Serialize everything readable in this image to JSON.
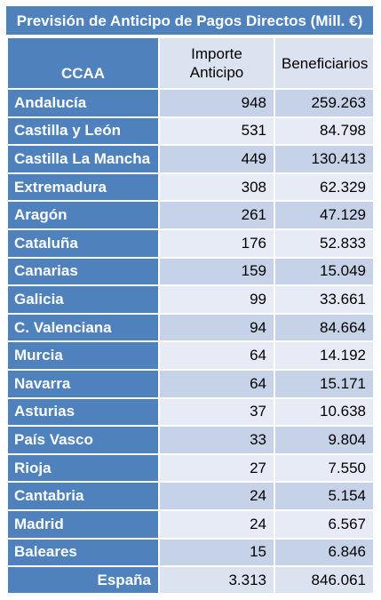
{
  "title": "Previsión de Anticipo de Pagos Directos (Mill. €)",
  "columns": {
    "ccaa": "CCAA",
    "importe": "Importe Anticipo",
    "beneficiarios": "Beneficiarios"
  },
  "total": {
    "label": "España",
    "importe": "3.313",
    "beneficiarios": "846.061"
  },
  "colors": {
    "header_blue": "#4f81bd",
    "band_dark": "#c5d2e7",
    "band_light": "#e6ebf5"
  },
  "chart_data": {
    "type": "table",
    "title": "Previsión de Anticipo de Pagos Directos (Mill. €)",
    "columns": [
      "CCAA",
      "Importe Anticipo",
      "Beneficiarios"
    ],
    "rows": [
      {
        "ccaa": "Andalucía",
        "importe": "948",
        "beneficiarios": "259.263"
      },
      {
        "ccaa": "Castilla y León",
        "importe": "531",
        "beneficiarios": "84.798"
      },
      {
        "ccaa": "Castilla La Mancha",
        "importe": "449",
        "beneficiarios": "130.413"
      },
      {
        "ccaa": "Extremadura",
        "importe": "308",
        "beneficiarios": "62.329"
      },
      {
        "ccaa": "Aragón",
        "importe": "261",
        "beneficiarios": "47.129"
      },
      {
        "ccaa": "Cataluña",
        "importe": "176",
        "beneficiarios": "52.833"
      },
      {
        "ccaa": "Canarias",
        "importe": "159",
        "beneficiarios": "15.049"
      },
      {
        "ccaa": "Galicia",
        "importe": "99",
        "beneficiarios": "33.661"
      },
      {
        "ccaa": "C. Valenciana",
        "importe": "94",
        "beneficiarios": "84.664"
      },
      {
        "ccaa": "Murcia",
        "importe": "64",
        "beneficiarios": "14.192"
      },
      {
        "ccaa": "Navarra",
        "importe": "64",
        "beneficiarios": "15.171"
      },
      {
        "ccaa": "Asturias",
        "importe": "37",
        "beneficiarios": "10.638"
      },
      {
        "ccaa": "País Vasco",
        "importe": "33",
        "beneficiarios": "9.804"
      },
      {
        "ccaa": "Rioja",
        "importe": "27",
        "beneficiarios": "7.550"
      },
      {
        "ccaa": "Cantabria",
        "importe": "24",
        "beneficiarios": "5.154"
      },
      {
        "ccaa": "Madrid",
        "importe": "24",
        "beneficiarios": "6.567"
      },
      {
        "ccaa": "Baleares",
        "importe": "15",
        "beneficiarios": "6.846"
      }
    ]
  }
}
